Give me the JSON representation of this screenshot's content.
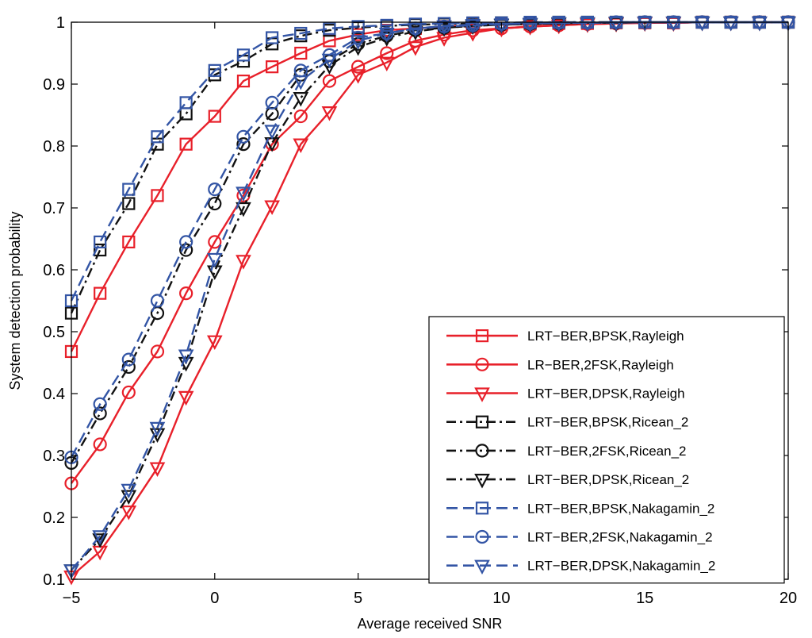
{
  "chart_data": {
    "type": "line",
    "title": "",
    "xlabel": "Average received SNR",
    "ylabel": "System detection probability",
    "xlim": [
      -5,
      20
    ],
    "ylim": [
      0.1,
      1.0
    ],
    "xticks": [
      -5,
      0,
      5,
      10,
      15,
      20
    ],
    "xtick_labels": [
      "−5",
      "0",
      "5",
      "10",
      "15",
      "20"
    ],
    "yticks": [
      0.1,
      0.2,
      0.3,
      0.4,
      0.5,
      0.6,
      0.7,
      0.8,
      0.9,
      1.0
    ],
    "ytick_labels": [
      "0.1",
      "0.2",
      "0.3",
      "0.4",
      "0.5",
      "0.6",
      "0.7",
      "0.8",
      "0.9",
      "1"
    ],
    "grid": false,
    "legend_position": "lower-right",
    "x": [
      -5,
      -4,
      -3,
      -2,
      -1,
      0,
      1,
      2,
      3,
      4,
      5,
      6,
      7,
      8,
      9,
      10,
      11,
      12,
      13,
      14,
      15,
      16,
      17,
      18,
      19,
      20
    ],
    "series": [
      {
        "name": "LRT−BER,BPSK,Rayleigh",
        "color": "#e8202a",
        "dash": "solid",
        "marker": "square",
        "values": [
          0.468,
          0.562,
          0.645,
          0.72,
          0.803,
          0.848,
          0.905,
          0.928,
          0.95,
          0.97,
          0.98,
          0.987,
          0.99,
          0.993,
          0.995,
          0.996,
          0.997,
          0.998,
          0.998,
          0.999,
          0.999,
          0.999,
          1.0,
          1.0,
          1.0,
          1.0
        ]
      },
      {
        "name": "LR−BER,2FSK,Rayleigh",
        "color": "#e8202a",
        "dash": "solid",
        "marker": "circle",
        "values": [
          0.255,
          0.318,
          0.402,
          0.468,
          0.562,
          0.645,
          0.72,
          0.803,
          0.848,
          0.905,
          0.928,
          0.95,
          0.97,
          0.98,
          0.987,
          0.99,
          0.993,
          0.995,
          0.997,
          0.998,
          0.999,
          0.999,
          1.0,
          1.0,
          1.0,
          1.0
        ]
      },
      {
        "name": "LRT−BER,DPSK,Rayleigh",
        "color": "#e8202a",
        "dash": "solid",
        "marker": "triangle",
        "values": [
          0.105,
          0.145,
          0.21,
          0.28,
          0.395,
          0.485,
          0.615,
          0.703,
          0.803,
          0.855,
          0.915,
          0.935,
          0.96,
          0.975,
          0.983,
          0.99,
          0.993,
          0.995,
          0.997,
          0.998,
          0.999,
          0.999,
          1.0,
          1.0,
          1.0,
          1.0
        ]
      },
      {
        "name": "LRT−BER,BPSK,Ricean_2",
        "color": "#111111",
        "dash": "dashdot",
        "marker": "square",
        "values": [
          0.53,
          0.632,
          0.707,
          0.803,
          0.852,
          0.915,
          0.937,
          0.965,
          0.978,
          0.987,
          0.991,
          0.994,
          0.996,
          0.997,
          0.998,
          0.999,
          0.999,
          1.0,
          1.0,
          1.0,
          1.0,
          1.0,
          1.0,
          1.0,
          1.0,
          1.0
        ]
      },
      {
        "name": "LRT−BER,2FSK,Ricean_2",
        "color": "#111111",
        "dash": "dashdot",
        "marker": "circle",
        "values": [
          0.288,
          0.368,
          0.443,
          0.53,
          0.632,
          0.707,
          0.803,
          0.852,
          0.915,
          0.937,
          0.965,
          0.978,
          0.987,
          0.991,
          0.994,
          0.996,
          0.997,
          0.998,
          0.999,
          0.999,
          1.0,
          1.0,
          1.0,
          1.0,
          1.0,
          1.0
        ]
      },
      {
        "name": "LRT−BER,DPSK,Ricean_2",
        "color": "#111111",
        "dash": "dashdot",
        "marker": "triangle",
        "values": [
          0.115,
          0.165,
          0.235,
          0.335,
          0.45,
          0.598,
          0.7,
          0.805,
          0.878,
          0.93,
          0.96,
          0.975,
          0.985,
          0.991,
          0.994,
          0.996,
          0.997,
          0.998,
          0.999,
          0.999,
          1.0,
          1.0,
          1.0,
          1.0,
          1.0,
          1.0
        ]
      },
      {
        "name": "LRT−BER,BPSK,Nakagamin_2",
        "color": "#3355a5",
        "dash": "dashed",
        "marker": "square",
        "values": [
          0.55,
          0.645,
          0.73,
          0.815,
          0.87,
          0.922,
          0.947,
          0.975,
          0.982,
          0.99,
          0.993,
          0.995,
          0.997,
          0.998,
          0.999,
          0.999,
          1.0,
          1.0,
          1.0,
          1.0,
          1.0,
          1.0,
          1.0,
          1.0,
          1.0,
          1.0
        ]
      },
      {
        "name": "LRT−BER,2FSK,Nakagamin_2",
        "color": "#3355a5",
        "dash": "dashed",
        "marker": "circle",
        "values": [
          0.297,
          0.383,
          0.455,
          0.55,
          0.645,
          0.73,
          0.815,
          0.87,
          0.922,
          0.947,
          0.975,
          0.982,
          0.99,
          0.993,
          0.995,
          0.997,
          0.998,
          0.999,
          0.999,
          1.0,
          1.0,
          1.0,
          1.0,
          1.0,
          1.0,
          1.0
        ]
      },
      {
        "name": "LRT−BER,DPSK,Nakagamin_2",
        "color": "#3355a5",
        "dash": "dashed",
        "marker": "triangle",
        "values": [
          0.115,
          0.17,
          0.245,
          0.345,
          0.462,
          0.618,
          0.725,
          0.825,
          0.905,
          0.94,
          0.97,
          0.982,
          0.99,
          0.994,
          0.996,
          0.997,
          0.998,
          0.999,
          0.999,
          1.0,
          1.0,
          1.0,
          1.0,
          1.0,
          1.0,
          1.0
        ]
      }
    ]
  }
}
